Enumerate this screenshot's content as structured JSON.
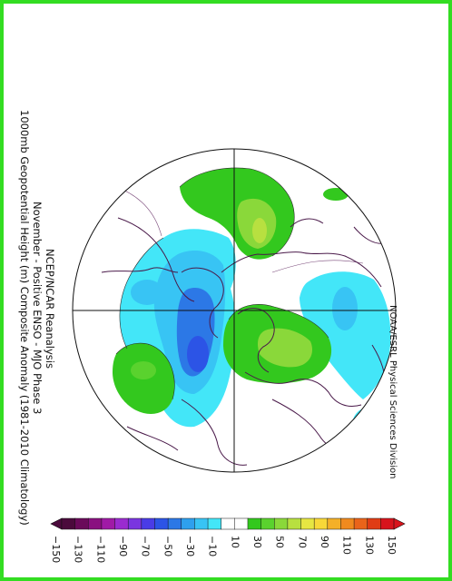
{
  "title": {
    "line1": "1000mb Geopotential Height (m) Composite Anomaly (1981-2010 Climatology)",
    "line2": "November - Positive ENSO - MJO Phase 3",
    "line3": "NCEP/NCAR Reanalysis"
  },
  "credit": "NOAA/ESRL Physical Sciences Division",
  "colorbar": {
    "labels": [
      "−150",
      "−130",
      "−110",
      "−90",
      "−70",
      "−50",
      "−30",
      "−10",
      "10",
      "30",
      "50",
      "70",
      "90",
      "110",
      "130",
      "150"
    ],
    "colors": [
      "#4b0a3c",
      "#6a0a5a",
      "#8a1080",
      "#a01aa6",
      "#9a2bd0",
      "#7a35e0",
      "#4a3ce6",
      "#2c54e6",
      "#2c78e6",
      "#2ea0ee",
      "#38c4f4",
      "#43e6f8",
      "#ffffff",
      "#ffffff",
      "#33c81e",
      "#5ad22e",
      "#8ad83a",
      "#b8e040",
      "#e6e642",
      "#f8d838",
      "#f4b028",
      "#f08a1e",
      "#ea641a",
      "#e03c14",
      "#d8141c"
    ]
  },
  "colors": {
    "border": "#33dd22",
    "coast": "#4a1a4a",
    "negative_light": "#43e6f8",
    "negative_mid": "#38c4f4",
    "negative_strong": "#2c78e6",
    "negative_core": "#2c54e6",
    "positive_light": "#33c81e",
    "positive_mid": "#8ad83a",
    "positive_core": "#b8e040"
  }
}
